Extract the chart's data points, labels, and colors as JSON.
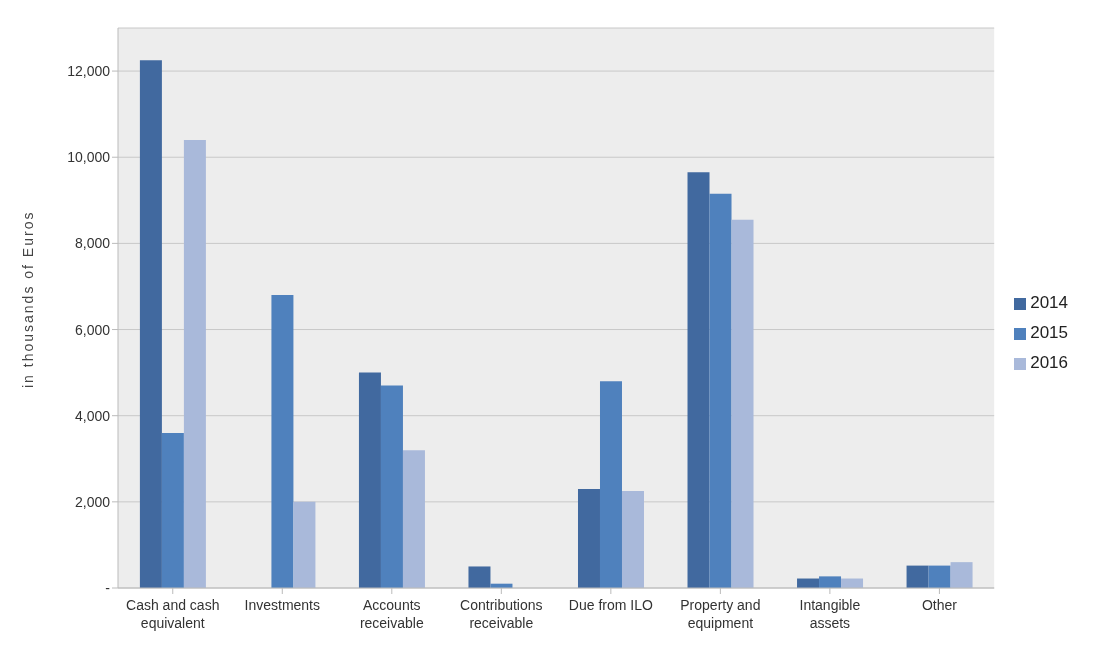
{
  "chart_data": {
    "type": "bar",
    "ylabel": "in thousands of Euros",
    "categories": [
      "Cash and cash equivalent",
      "Investments",
      "Accounts receivable",
      "Contributions receivable",
      "Due from ILO",
      "Property and equipment",
      "Intangible assets",
      "Other"
    ],
    "series": [
      {
        "name": "2014",
        "color": "#41699f",
        "values": [
          12250,
          0,
          5000,
          500,
          2300,
          9650,
          220,
          520
        ]
      },
      {
        "name": "2015",
        "color": "#4f81bd",
        "values": [
          3600,
          6800,
          4700,
          100,
          4800,
          9150,
          270,
          520
        ]
      },
      {
        "name": "2016",
        "color": "#a9b9da",
        "values": [
          10400,
          2000,
          3200,
          0,
          2250,
          8550,
          220,
          600
        ]
      }
    ],
    "ylim": [
      0,
      13000
    ],
    "yticks": [
      {
        "value": 0,
        "label": "-"
      },
      {
        "value": 2000,
        "label": "2,000"
      },
      {
        "value": 4000,
        "label": "4,000"
      },
      {
        "value": 6000,
        "label": "6,000"
      },
      {
        "value": 8000,
        "label": "8,000"
      },
      {
        "value": 10000,
        "label": "10,000"
      },
      {
        "value": 12000,
        "label": "12,000"
      }
    ],
    "grid": "y",
    "legend": "right"
  }
}
